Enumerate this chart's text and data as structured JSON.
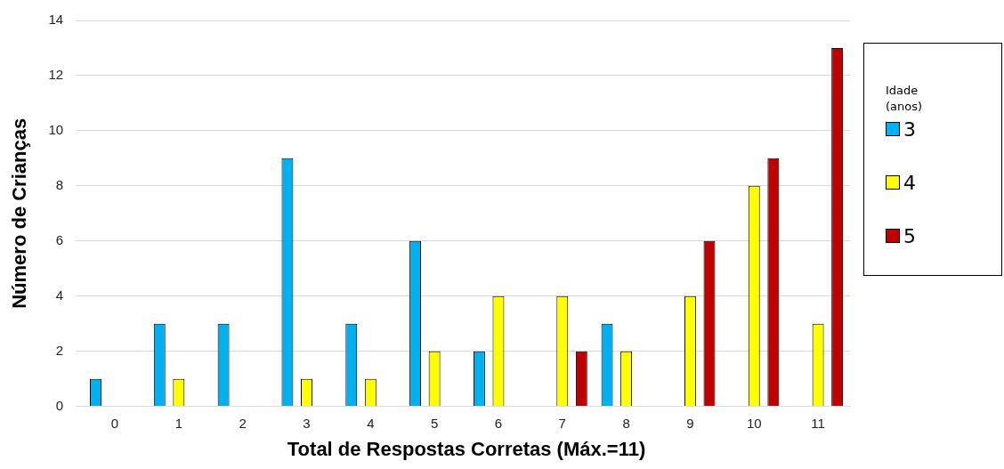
{
  "chart_data": {
    "type": "bar",
    "xlabel": "Total de Respostas Corretas (Máx.=11)",
    "ylabel": "Número de Crianças",
    "legend_title": "Idade (anos)",
    "legend": "right",
    "grid": "y",
    "categories": [
      "0",
      "1",
      "2",
      "3",
      "4",
      "5",
      "6",
      "7",
      "8",
      "9",
      "10",
      "11"
    ],
    "ylim": [
      0,
      14
    ],
    "yticks": [
      0,
      2,
      4,
      6,
      8,
      10,
      12,
      14
    ],
    "series": [
      {
        "name": "3",
        "color": "#00b0f0",
        "values": [
          1,
          3,
          3,
          9,
          3,
          6,
          2,
          null,
          3,
          null,
          null,
          null
        ]
      },
      {
        "name": "4",
        "color": "#ffff00",
        "values": [
          null,
          1,
          null,
          1,
          1,
          2,
          4,
          4,
          2,
          4,
          8,
          3
        ]
      },
      {
        "name": "5",
        "color": "#c00000",
        "values": [
          null,
          null,
          null,
          null,
          null,
          null,
          null,
          2,
          null,
          6,
          9,
          13
        ]
      }
    ]
  }
}
